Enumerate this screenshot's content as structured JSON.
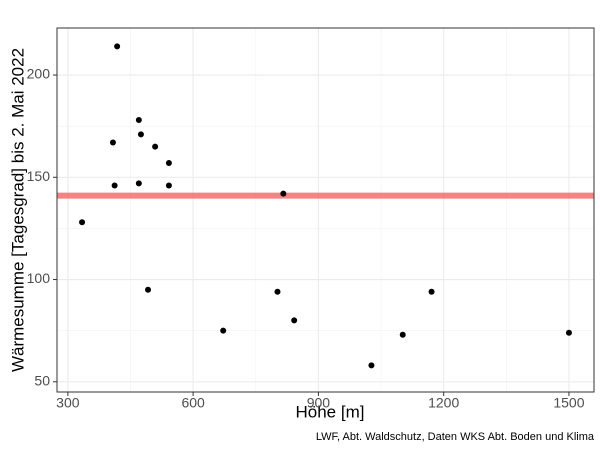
{
  "chart_data": {
    "type": "scatter",
    "x_label": "Höhe [m]",
    "y_label": "Wärmesumme [Tagesgrad] bis 2. Mai 2022",
    "caption": "LWF, Abt. Waldschutz, Daten WKS Abt. Boden und Klima",
    "x": [
      334,
      418,
      408,
      412,
      470,
      475,
      470,
      492,
      509,
      542,
      542,
      672,
      802,
      816,
      842,
      1027,
      1102,
      1171,
      1500
    ],
    "values": [
      128,
      214,
      167,
      146,
      178,
      171,
      147,
      95,
      165,
      157,
      146,
      75,
      94,
      142,
      80,
      58,
      73,
      94,
      74
    ],
    "color": "#000000",
    "reference_line": 141,
    "reference_color": "#f26d6d",
    "xlim": [
      274,
      1560
    ],
    "xticks": [
      300,
      600,
      900,
      1200,
      1500
    ],
    "ylim": [
      45,
      223
    ],
    "yticks": [
      50,
      100,
      150,
      200
    ],
    "grid": true
  }
}
